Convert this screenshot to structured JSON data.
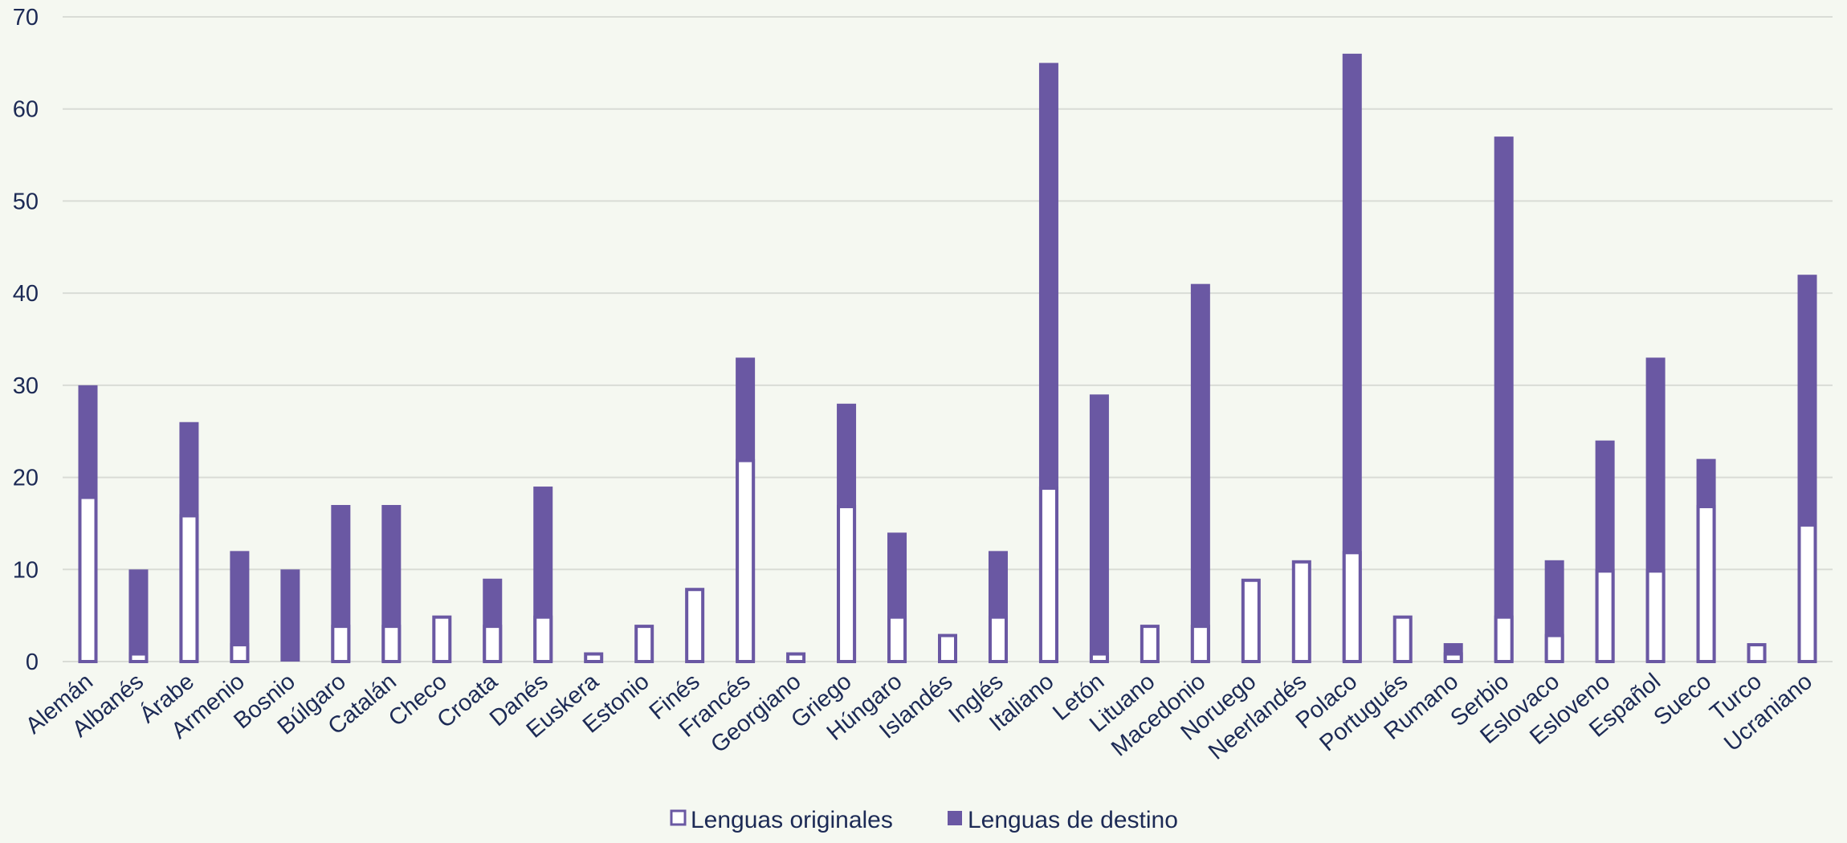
{
  "chart_data": {
    "type": "bar",
    "title": "",
    "xlabel": "",
    "ylabel": "",
    "ylim": [
      0,
      70
    ],
    "yticks": [
      0,
      10,
      20,
      30,
      40,
      50,
      60,
      70
    ],
    "grid": true,
    "legend_position": "bottom-center",
    "categories": [
      "Alemán",
      "Albanés",
      "Árabe",
      "Armenio",
      "Bosnio",
      "Búlgaro",
      "Catalán",
      "Checo",
      "Croata",
      "Danés",
      "Euskera",
      "Estonio",
      "Finés",
      "Francés",
      "Georgiano",
      "Griego",
      "Húngaro",
      "Islandés",
      "Inglés",
      "Italiano",
      "Letón",
      "Lituano",
      "Macedonio",
      "Noruego",
      "Neerlandés",
      "Polaco",
      "Portugués",
      "Rumano",
      "Serbio",
      "Eslovaco",
      "Esloveno",
      "Español",
      "Sueco",
      "Turco",
      "Ucraniano"
    ],
    "series": [
      {
        "name": "Lenguas originales",
        "fill": "#ffffff",
        "stroke": "#6a58a3",
        "values": [
          18,
          1,
          16,
          2,
          0,
          4,
          4,
          5,
          4,
          5,
          1,
          4,
          8,
          22,
          1,
          17,
          5,
          3,
          5,
          19,
          1,
          4,
          4,
          9,
          11,
          12,
          5,
          1,
          5,
          3,
          10,
          10,
          17,
          2,
          15
        ]
      },
      {
        "name": "Lenguas de destino",
        "fill": "#6a58a3",
        "stroke": "#6a58a3",
        "values": [
          30,
          10,
          26,
          12,
          10,
          17,
          17,
          0,
          9,
          19,
          0,
          0,
          0,
          33,
          0,
          28,
          14,
          0,
          12,
          65,
          29,
          0,
          41,
          0,
          0,
          66,
          0,
          2,
          57,
          11,
          24,
          33,
          22,
          0,
          42
        ]
      }
    ]
  }
}
